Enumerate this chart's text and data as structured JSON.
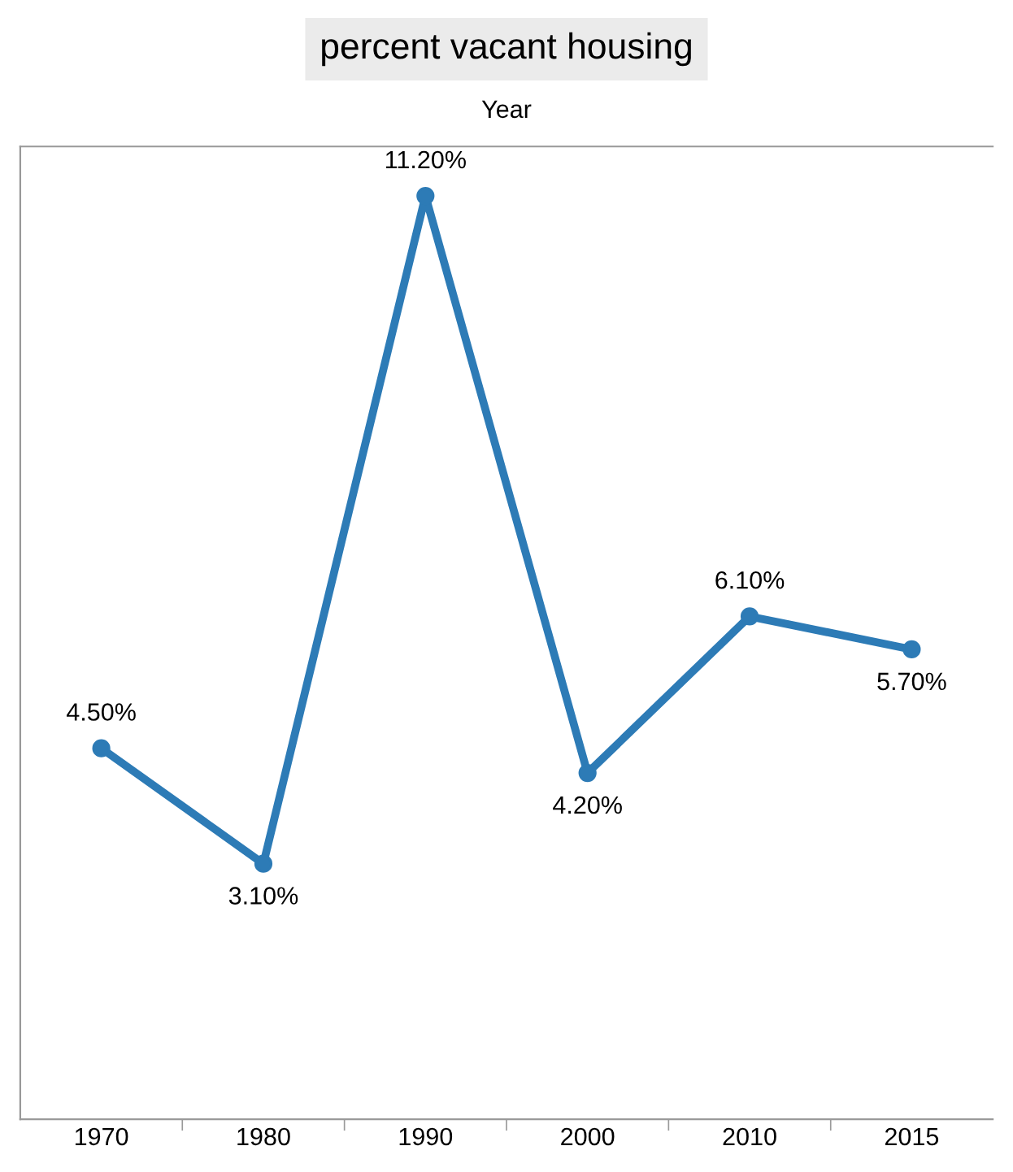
{
  "chart_data": {
    "type": "line",
    "title": "percent vacant housing",
    "xlabel": "Year",
    "categories": [
      "1970",
      "1980",
      "1990",
      "2000",
      "2010",
      "2015"
    ],
    "series": [
      {
        "color": "#2d7bb6",
        "values": [
          4.5,
          3.1,
          11.2,
          4.2,
          6.1,
          5.7
        ],
        "value_labels": [
          "4.50%",
          "3.10%",
          "11.20%",
          "4.20%",
          "6.10%",
          "5.70%"
        ]
      }
    ],
    "ylim": [
      0,
      11.8
    ],
    "marker": "circle",
    "line_style": "solid",
    "grid": false,
    "legend": false,
    "tick_labels": "x"
  }
}
